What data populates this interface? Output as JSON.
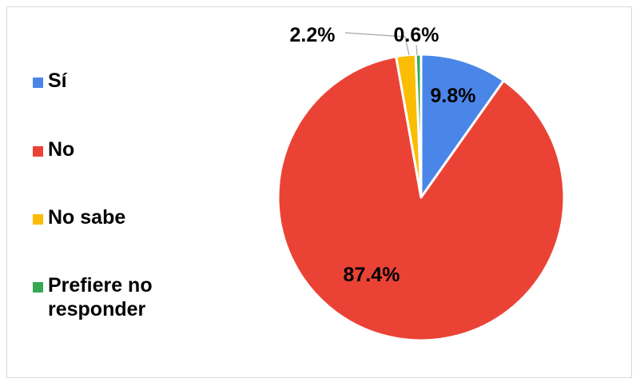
{
  "chart_data": {
    "type": "pie",
    "categories": [
      "Sí",
      "No",
      "No sabe",
      "Prefiere no responder"
    ],
    "values": [
      9.8,
      87.4,
      2.2,
      0.6
    ],
    "labels": [
      "9.8%",
      "87.4%",
      "2.2%",
      "0.6%"
    ],
    "colors": [
      "#4a86e8",
      "#ea4335",
      "#fbbc04",
      "#34a853"
    ],
    "legend_position": "left"
  }
}
